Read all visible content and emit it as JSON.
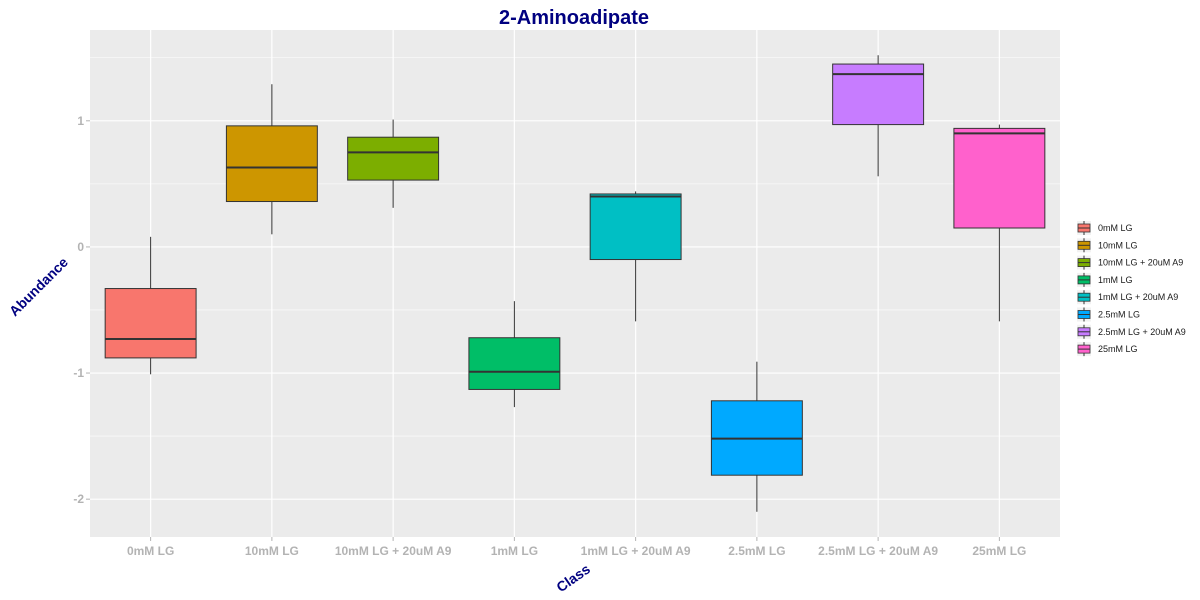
{
  "chart_data": {
    "type": "boxplot",
    "title": "2-Aminoadipate",
    "xlabel": "Class",
    "ylabel": "Abundance",
    "ylim": [
      -2.3,
      1.72
    ],
    "yticks": [
      -2,
      -1,
      0,
      1
    ],
    "categories": [
      "0mM LG",
      "10mM LG",
      "10mM LG + 20uM A9",
      "1mM LG",
      "1mM LG + 20uM A9",
      "2.5mM LG",
      "2.5mM LG + 20uM A9",
      "25mM LG"
    ],
    "series": [
      {
        "name": "0mM LG",
        "color": "#F8766D",
        "min": -1.01,
        "q1": -0.88,
        "median": -0.73,
        "q3": -0.33,
        "max": 0.08
      },
      {
        "name": "10mM LG",
        "color": "#CD9600",
        "min": 0.1,
        "q1": 0.36,
        "median": 0.63,
        "q3": 0.96,
        "max": 1.29
      },
      {
        "name": "10mM LG + 20uM A9",
        "color": "#7CAE00",
        "min": 0.31,
        "q1": 0.53,
        "median": 0.75,
        "q3": 0.87,
        "max": 1.01
      },
      {
        "name": "1mM LG",
        "color": "#00BE67",
        "min": -1.27,
        "q1": -1.13,
        "median": -0.99,
        "q3": -0.72,
        "max": -0.43
      },
      {
        "name": "1mM LG + 20uM A9",
        "color": "#00BFC4",
        "min": -0.59,
        "q1": -0.1,
        "median": 0.4,
        "q3": 0.42,
        "max": 0.44
      },
      {
        "name": "2.5mM LG",
        "color": "#00A9FF",
        "min": -2.1,
        "q1": -1.81,
        "median": -1.52,
        "q3": -1.22,
        "max": -0.91
      },
      {
        "name": "2.5mM LG + 20uM A9",
        "color": "#C77CFF",
        "min": 0.56,
        "q1": 0.97,
        "median": 1.37,
        "q3": 1.45,
        "max": 1.52
      },
      {
        "name": "25mM LG",
        "color": "#FF61CC",
        "min": -0.59,
        "q1": 0.15,
        "median": 0.9,
        "q3": 0.94,
        "max": 0.97
      }
    ],
    "grid": true,
    "legend_position": "right"
  }
}
